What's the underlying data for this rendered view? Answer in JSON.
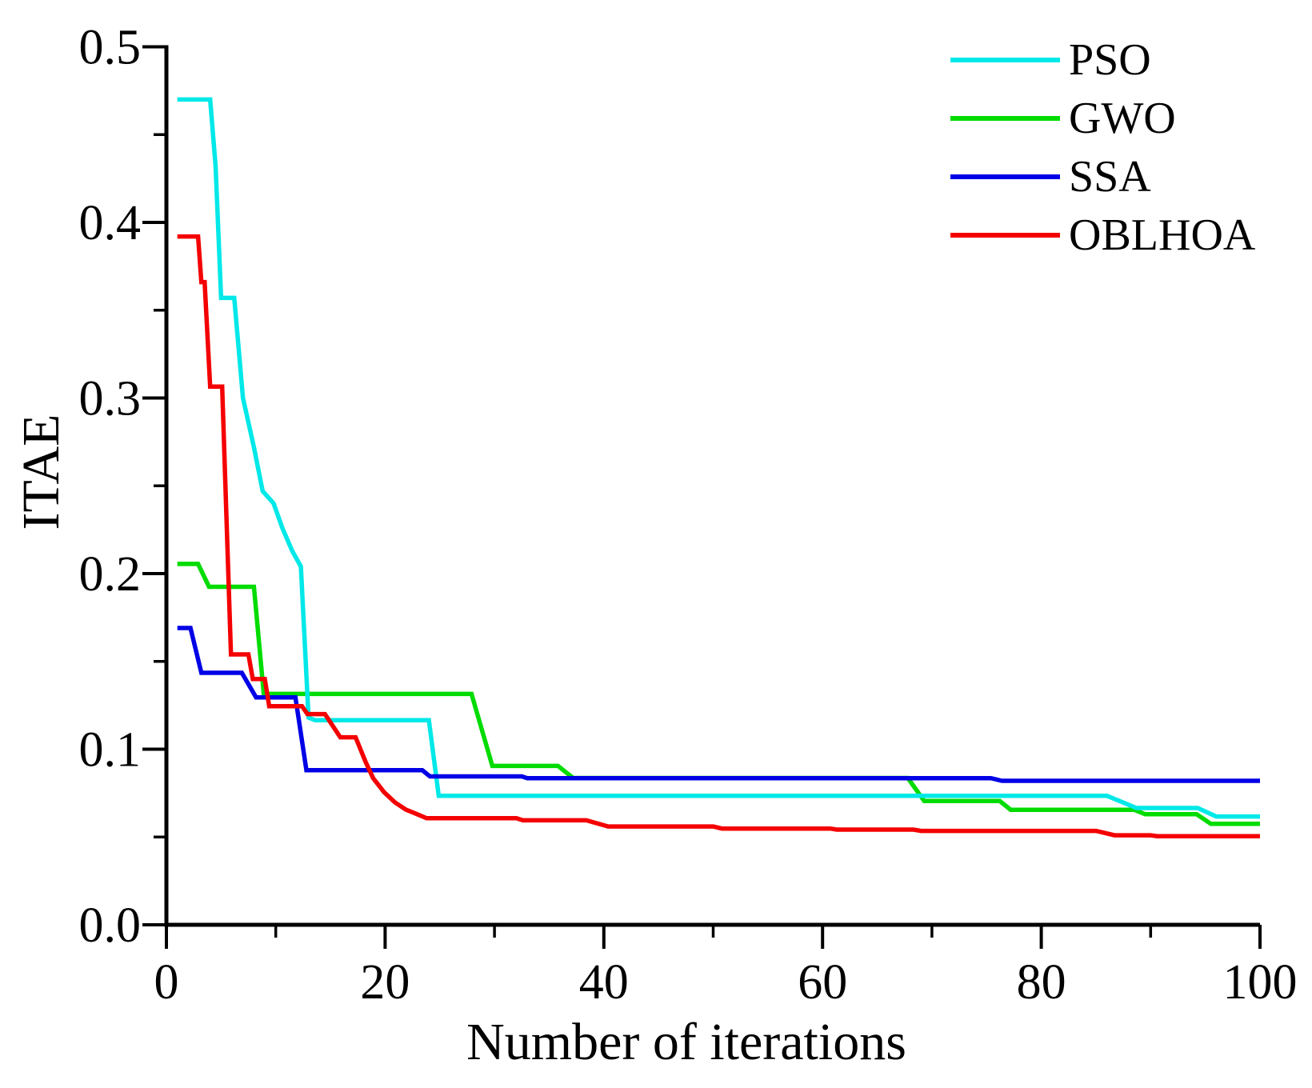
{
  "figure": {
    "background": "#ffffff",
    "axis_color": "#000000"
  },
  "chart_data": {
    "type": "line",
    "title": "",
    "xlabel": "Number of iterations",
    "ylabel": "ITAE",
    "xlim": [
      0,
      100
    ],
    "ylim": [
      0.0,
      0.5
    ],
    "grid": false,
    "legend_position": "top-right",
    "x_major_ticks": [
      0,
      20,
      40,
      60,
      80,
      100
    ],
    "x_major_tick_labels": [
      "0",
      "20",
      "40",
      "60",
      "80",
      "100"
    ],
    "x_minor_ticks": [
      10,
      30,
      50,
      70,
      90
    ],
    "y_major_ticks": [
      0.0,
      0.1,
      0.2,
      0.3,
      0.4,
      0.5
    ],
    "y_major_tick_labels": [
      "0.0",
      "0.1",
      "0.2",
      "0.3",
      "0.4",
      "0.5"
    ],
    "y_minor_ticks": [
      0.05,
      0.15,
      0.25,
      0.35,
      0.45
    ],
    "series": [
      {
        "name": "PSO",
        "color": "#00E8E8",
        "points": [
          [
            1,
            0.47
          ],
          [
            4.0,
            0.47
          ],
          [
            4.5,
            0.432
          ],
          [
            5.0,
            0.357
          ],
          [
            6.2,
            0.357
          ],
          [
            7.0,
            0.3
          ],
          [
            8.0,
            0.272
          ],
          [
            8.8,
            0.247
          ],
          [
            9.8,
            0.24
          ],
          [
            10.6,
            0.226
          ],
          [
            11.5,
            0.213
          ],
          [
            12.3,
            0.204
          ],
          [
            13.0,
            0.118
          ],
          [
            13.6,
            0.1165
          ],
          [
            24.0,
            0.1165
          ],
          [
            24.9,
            0.0735
          ],
          [
            86.0,
            0.0735
          ],
          [
            88.7,
            0.0665
          ],
          [
            94.3,
            0.0665
          ],
          [
            96.0,
            0.0617
          ],
          [
            100,
            0.0617
          ]
        ]
      },
      {
        "name": "GWO",
        "color": "#00DC00",
        "points": [
          [
            1,
            0.2055
          ],
          [
            2.9,
            0.2055
          ],
          [
            3.9,
            0.1925
          ],
          [
            8.0,
            0.1925
          ],
          [
            8.9,
            0.1315
          ],
          [
            27.9,
            0.1315
          ],
          [
            29.8,
            0.0905
          ],
          [
            35.8,
            0.0905
          ],
          [
            37.2,
            0.0836
          ],
          [
            67.8,
            0.0836
          ],
          [
            69.3,
            0.0705
          ],
          [
            76.2,
            0.0705
          ],
          [
            77.2,
            0.0655
          ],
          [
            88.5,
            0.0655
          ],
          [
            89.5,
            0.063
          ],
          [
            94.2,
            0.063
          ],
          [
            95.5,
            0.0575
          ],
          [
            100,
            0.0575
          ]
        ]
      },
      {
        "name": "SSA",
        "color": "#0000E6",
        "points": [
          [
            1,
            0.169
          ],
          [
            2.2,
            0.169
          ],
          [
            3.2,
            0.1435
          ],
          [
            6.9,
            0.1435
          ],
          [
            8.2,
            0.1295
          ],
          [
            11.8,
            0.1295
          ],
          [
            12.8,
            0.088
          ],
          [
            23.4,
            0.088
          ],
          [
            24.1,
            0.0845
          ],
          [
            32.5,
            0.0845
          ],
          [
            33.0,
            0.0835
          ],
          [
            75.4,
            0.0835
          ],
          [
            76.4,
            0.082
          ],
          [
            100,
            0.082
          ]
        ]
      },
      {
        "name": "OBLHOA",
        "color": "#F40000",
        "points": [
          [
            1,
            0.392
          ],
          [
            2.9,
            0.392
          ],
          [
            3.2,
            0.366
          ],
          [
            3.5,
            0.366
          ],
          [
            4.0,
            0.3065
          ],
          [
            5.1,
            0.3065
          ],
          [
            5.9,
            0.154
          ],
          [
            7.5,
            0.154
          ],
          [
            7.9,
            0.14
          ],
          [
            9.0,
            0.14
          ],
          [
            9.4,
            0.1245
          ],
          [
            12.4,
            0.1245
          ],
          [
            12.9,
            0.12
          ],
          [
            14.5,
            0.12
          ],
          [
            15.9,
            0.1068
          ],
          [
            17.3,
            0.1068
          ],
          [
            18.2,
            0.093
          ],
          [
            18.9,
            0.0835
          ],
          [
            19.9,
            0.0756
          ],
          [
            20.9,
            0.0697
          ],
          [
            21.9,
            0.0656
          ],
          [
            22.8,
            0.0633
          ],
          [
            23.8,
            0.0607
          ],
          [
            32.0,
            0.0607
          ],
          [
            32.6,
            0.0595
          ],
          [
            38.4,
            0.0595
          ],
          [
            40.4,
            0.056
          ],
          [
            50.0,
            0.056
          ],
          [
            50.8,
            0.0548
          ],
          [
            60.7,
            0.0548
          ],
          [
            61.3,
            0.0542
          ],
          [
            68.3,
            0.0542
          ],
          [
            69.0,
            0.0535
          ],
          [
            85.0,
            0.0535
          ],
          [
            86.7,
            0.051
          ],
          [
            90.0,
            0.051
          ],
          [
            90.6,
            0.0505
          ],
          [
            100,
            0.0505
          ]
        ]
      }
    ]
  }
}
